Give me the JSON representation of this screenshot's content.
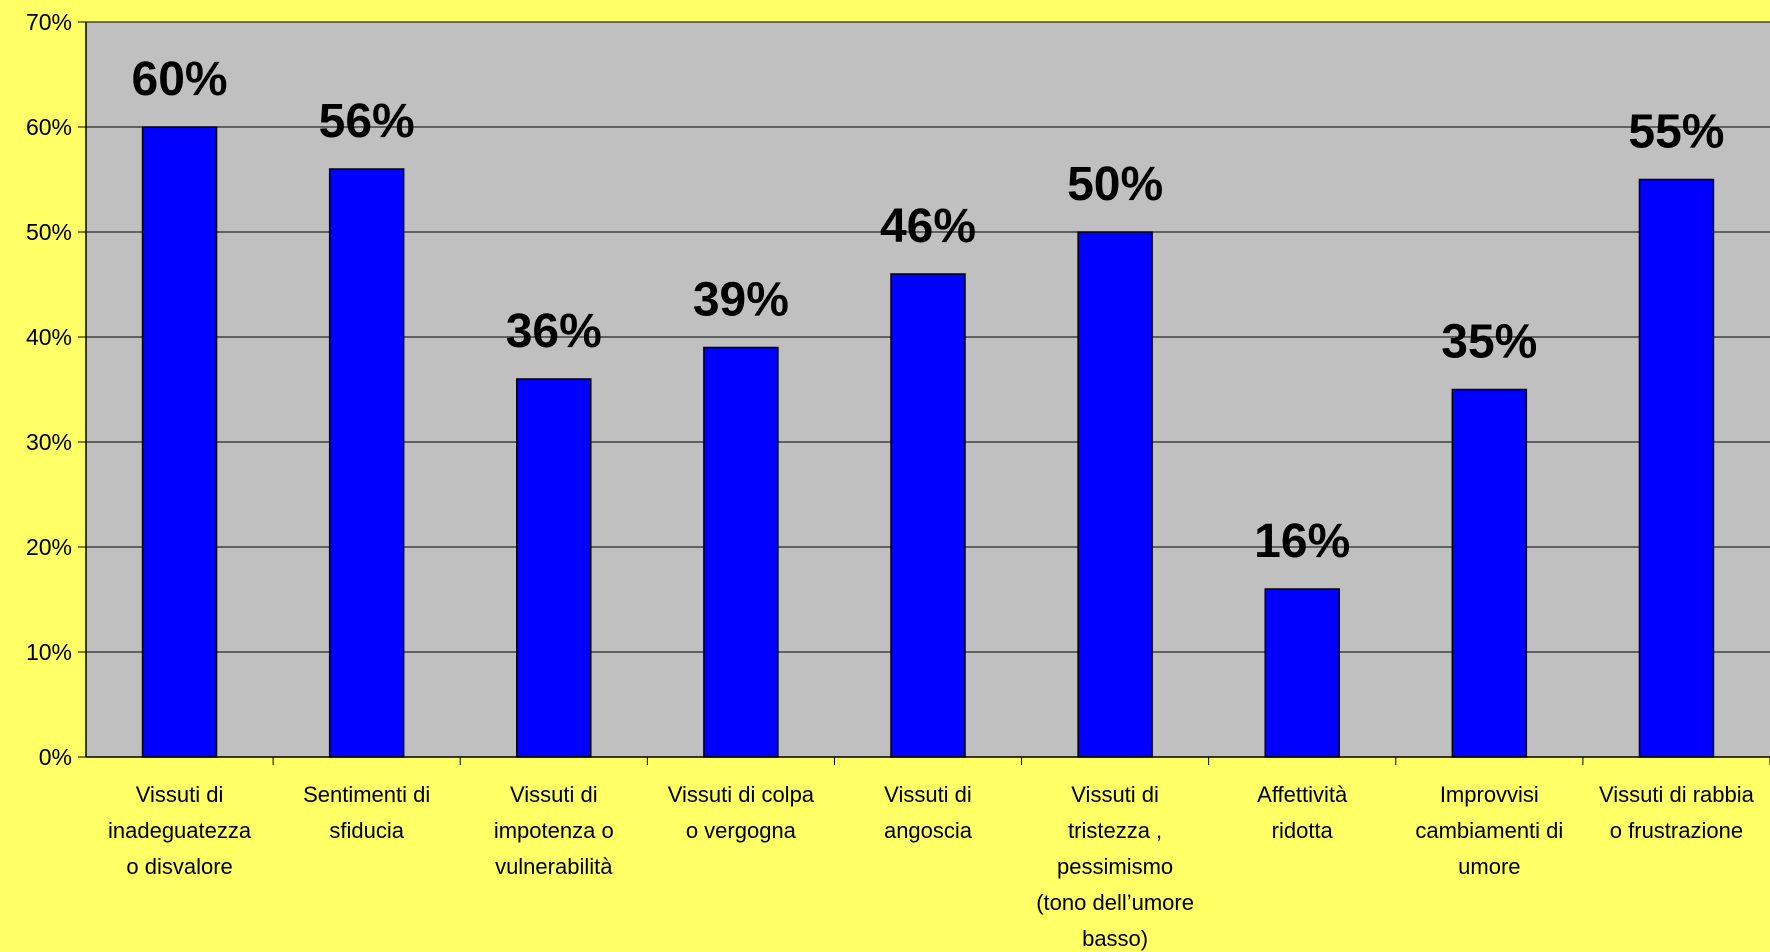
{
  "chart_data": {
    "type": "bar",
    "title": "",
    "xlabel": "",
    "ylabel": "",
    "ylim": [
      0,
      70
    ],
    "yticks": [
      "0%",
      "10%",
      "20%",
      "30%",
      "40%",
      "50%",
      "60%",
      "70%"
    ],
    "grid": true,
    "legend": "none",
    "categories": [
      [
        "Vissuti di",
        "inadeguatezza",
        "o disvalore"
      ],
      [
        "Sentimenti di",
        "sfiducia"
      ],
      [
        "Vissuti di",
        "impotenza o",
        "vulnerabilità"
      ],
      [
        "Vissuti di colpa",
        "o vergogna"
      ],
      [
        "Vissuti di",
        "angoscia"
      ],
      [
        "Vissuti di",
        "tristezza ,",
        "pessimismo",
        "(tono dell’umore",
        "basso)"
      ],
      [
        "Affettività",
        "ridotta"
      ],
      [
        "Improvvisi",
        "cambiamenti di",
        "umore"
      ],
      [
        "Vissuti di rabbia",
        "o frustrazione"
      ]
    ],
    "values": [
      60,
      56,
      36,
      39,
      46,
      50,
      16,
      35,
      55
    ],
    "data_labels": [
      "60%",
      "56%",
      "36%",
      "39%",
      "46%",
      "50%",
      "16%",
      "35%",
      "55%"
    ],
    "colors": {
      "background": "#ffff66",
      "plot_area": "#c0c0c0",
      "bar": "#0000ff",
      "bar_border": "#000000",
      "grid": "#000000"
    }
  }
}
